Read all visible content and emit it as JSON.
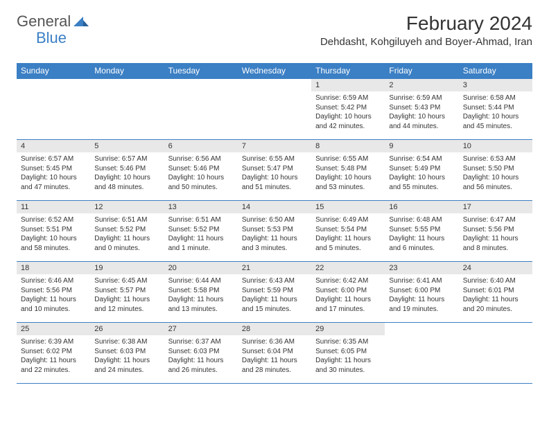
{
  "brand": {
    "name1": "General",
    "name2": "Blue"
  },
  "title": "February 2024",
  "location": "Dehdasht, Kohgiluyeh and Boyer-Ahmad, Iran",
  "dayHeaders": [
    "Sunday",
    "Monday",
    "Tuesday",
    "Wednesday",
    "Thursday",
    "Friday",
    "Saturday"
  ],
  "colors": {
    "header_bg": "#3b7fc4",
    "header_text": "#ffffff",
    "daynum_bg": "#e8e8e8",
    "border": "#3b7fc4",
    "text": "#333333",
    "page_bg": "#ffffff"
  },
  "weeks": [
    [
      {
        "empty": true
      },
      {
        "empty": true
      },
      {
        "empty": true
      },
      {
        "empty": true
      },
      {
        "num": "1",
        "sunrise": "Sunrise: 6:59 AM",
        "sunset": "Sunset: 5:42 PM",
        "daylight": "Daylight: 10 hours and 42 minutes."
      },
      {
        "num": "2",
        "sunrise": "Sunrise: 6:59 AM",
        "sunset": "Sunset: 5:43 PM",
        "daylight": "Daylight: 10 hours and 44 minutes."
      },
      {
        "num": "3",
        "sunrise": "Sunrise: 6:58 AM",
        "sunset": "Sunset: 5:44 PM",
        "daylight": "Daylight: 10 hours and 45 minutes."
      }
    ],
    [
      {
        "num": "4",
        "sunrise": "Sunrise: 6:57 AM",
        "sunset": "Sunset: 5:45 PM",
        "daylight": "Daylight: 10 hours and 47 minutes."
      },
      {
        "num": "5",
        "sunrise": "Sunrise: 6:57 AM",
        "sunset": "Sunset: 5:46 PM",
        "daylight": "Daylight: 10 hours and 48 minutes."
      },
      {
        "num": "6",
        "sunrise": "Sunrise: 6:56 AM",
        "sunset": "Sunset: 5:46 PM",
        "daylight": "Daylight: 10 hours and 50 minutes."
      },
      {
        "num": "7",
        "sunrise": "Sunrise: 6:55 AM",
        "sunset": "Sunset: 5:47 PM",
        "daylight": "Daylight: 10 hours and 51 minutes."
      },
      {
        "num": "8",
        "sunrise": "Sunrise: 6:55 AM",
        "sunset": "Sunset: 5:48 PM",
        "daylight": "Daylight: 10 hours and 53 minutes."
      },
      {
        "num": "9",
        "sunrise": "Sunrise: 6:54 AM",
        "sunset": "Sunset: 5:49 PM",
        "daylight": "Daylight: 10 hours and 55 minutes."
      },
      {
        "num": "10",
        "sunrise": "Sunrise: 6:53 AM",
        "sunset": "Sunset: 5:50 PM",
        "daylight": "Daylight: 10 hours and 56 minutes."
      }
    ],
    [
      {
        "num": "11",
        "sunrise": "Sunrise: 6:52 AM",
        "sunset": "Sunset: 5:51 PM",
        "daylight": "Daylight: 10 hours and 58 minutes."
      },
      {
        "num": "12",
        "sunrise": "Sunrise: 6:51 AM",
        "sunset": "Sunset: 5:52 PM",
        "daylight": "Daylight: 11 hours and 0 minutes."
      },
      {
        "num": "13",
        "sunrise": "Sunrise: 6:51 AM",
        "sunset": "Sunset: 5:52 PM",
        "daylight": "Daylight: 11 hours and 1 minute."
      },
      {
        "num": "14",
        "sunrise": "Sunrise: 6:50 AM",
        "sunset": "Sunset: 5:53 PM",
        "daylight": "Daylight: 11 hours and 3 minutes."
      },
      {
        "num": "15",
        "sunrise": "Sunrise: 6:49 AM",
        "sunset": "Sunset: 5:54 PM",
        "daylight": "Daylight: 11 hours and 5 minutes."
      },
      {
        "num": "16",
        "sunrise": "Sunrise: 6:48 AM",
        "sunset": "Sunset: 5:55 PM",
        "daylight": "Daylight: 11 hours and 6 minutes."
      },
      {
        "num": "17",
        "sunrise": "Sunrise: 6:47 AM",
        "sunset": "Sunset: 5:56 PM",
        "daylight": "Daylight: 11 hours and 8 minutes."
      }
    ],
    [
      {
        "num": "18",
        "sunrise": "Sunrise: 6:46 AM",
        "sunset": "Sunset: 5:56 PM",
        "daylight": "Daylight: 11 hours and 10 minutes."
      },
      {
        "num": "19",
        "sunrise": "Sunrise: 6:45 AM",
        "sunset": "Sunset: 5:57 PM",
        "daylight": "Daylight: 11 hours and 12 minutes."
      },
      {
        "num": "20",
        "sunrise": "Sunrise: 6:44 AM",
        "sunset": "Sunset: 5:58 PM",
        "daylight": "Daylight: 11 hours and 13 minutes."
      },
      {
        "num": "21",
        "sunrise": "Sunrise: 6:43 AM",
        "sunset": "Sunset: 5:59 PM",
        "daylight": "Daylight: 11 hours and 15 minutes."
      },
      {
        "num": "22",
        "sunrise": "Sunrise: 6:42 AM",
        "sunset": "Sunset: 6:00 PM",
        "daylight": "Daylight: 11 hours and 17 minutes."
      },
      {
        "num": "23",
        "sunrise": "Sunrise: 6:41 AM",
        "sunset": "Sunset: 6:00 PM",
        "daylight": "Daylight: 11 hours and 19 minutes."
      },
      {
        "num": "24",
        "sunrise": "Sunrise: 6:40 AM",
        "sunset": "Sunset: 6:01 PM",
        "daylight": "Daylight: 11 hours and 20 minutes."
      }
    ],
    [
      {
        "num": "25",
        "sunrise": "Sunrise: 6:39 AM",
        "sunset": "Sunset: 6:02 PM",
        "daylight": "Daylight: 11 hours and 22 minutes."
      },
      {
        "num": "26",
        "sunrise": "Sunrise: 6:38 AM",
        "sunset": "Sunset: 6:03 PM",
        "daylight": "Daylight: 11 hours and 24 minutes."
      },
      {
        "num": "27",
        "sunrise": "Sunrise: 6:37 AM",
        "sunset": "Sunset: 6:03 PM",
        "daylight": "Daylight: 11 hours and 26 minutes."
      },
      {
        "num": "28",
        "sunrise": "Sunrise: 6:36 AM",
        "sunset": "Sunset: 6:04 PM",
        "daylight": "Daylight: 11 hours and 28 minutes."
      },
      {
        "num": "29",
        "sunrise": "Sunrise: 6:35 AM",
        "sunset": "Sunset: 6:05 PM",
        "daylight": "Daylight: 11 hours and 30 minutes."
      },
      {
        "empty": true
      },
      {
        "empty": true
      }
    ]
  ]
}
